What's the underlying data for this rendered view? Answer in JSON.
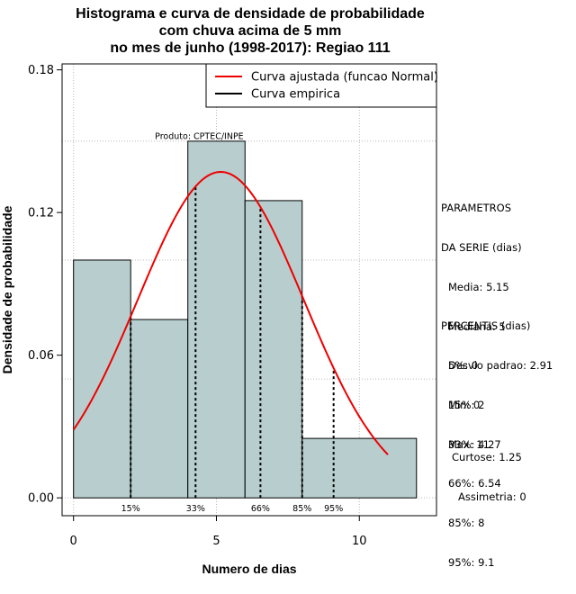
{
  "chart_data": {
    "type": "histogram",
    "title_lines": [
      "Histograma e curva de densidade de probabilidade",
      "com chuva acima de 5 mm",
      "no mes de junho (1998-2017): Regiao 111"
    ],
    "xlabel": "Numero de dias",
    "ylabel": "Densidade de probabilidade",
    "xlim": [
      -0.4,
      12.7
    ],
    "ylim": [
      -0.0075,
      0.1825
    ],
    "x_ticks": [
      0,
      5,
      10
    ],
    "y_ticks": [
      0.0,
      0.06,
      0.12,
      0.18
    ],
    "y_tick_labels": [
      "0.00",
      "0.06",
      "0.12",
      "0.18"
    ],
    "grid_x": [
      0,
      5,
      10
    ],
    "grid_y": [
      0.0,
      0.05,
      0.1,
      0.15
    ],
    "bins": [
      {
        "x0": 0,
        "x1": 2,
        "density": 0.1
      },
      {
        "x0": 2,
        "x1": 4,
        "density": 0.075
      },
      {
        "x0": 4,
        "x1": 6,
        "density": 0.15
      },
      {
        "x0": 6,
        "x1": 8,
        "density": 0.125
      },
      {
        "x0": 8,
        "x1": 12,
        "density": 0.025
      }
    ],
    "bar_color": "#b8cece",
    "normal_curve": {
      "name": "Curva ajustada (funcao Normal)",
      "color": "#ee0000",
      "mean": 5.15,
      "sd": 2.91,
      "x_from": 0,
      "x_to": 11
    },
    "empirical_curve": {
      "name": "Curva empirica",
      "color": "#000000"
    },
    "percentile_lines": [
      {
        "label": "15%",
        "x": 2
      },
      {
        "label": "33%",
        "x": 4.27
      },
      {
        "label": "66%",
        "x": 6.54
      },
      {
        "label": "85%",
        "x": 8
      },
      {
        "label": "95%",
        "x": 9.1
      }
    ],
    "product_label": "Produto: CPTEC/INPE",
    "legend_position": "top-right"
  },
  "parametros": {
    "heading": [
      "PARAMETROS",
      "DA SERIE (dias)"
    ],
    "lines": [
      "Media: 5.15",
      "Mediana: 5",
      "Desvio padrao: 2.91",
      "Min: 0",
      "Max: 11"
    ]
  },
  "percentis": {
    "heading": "PERCENTIS (dias)",
    "lines": [
      "5%: 0",
      "15%: 2",
      "33%: 4.27",
      "66%: 6.54",
      "85%: 8",
      "95%: 9.1"
    ]
  },
  "shape": {
    "lines": [
      "Curtose: 1.25",
      "Assimetria: 0"
    ]
  }
}
